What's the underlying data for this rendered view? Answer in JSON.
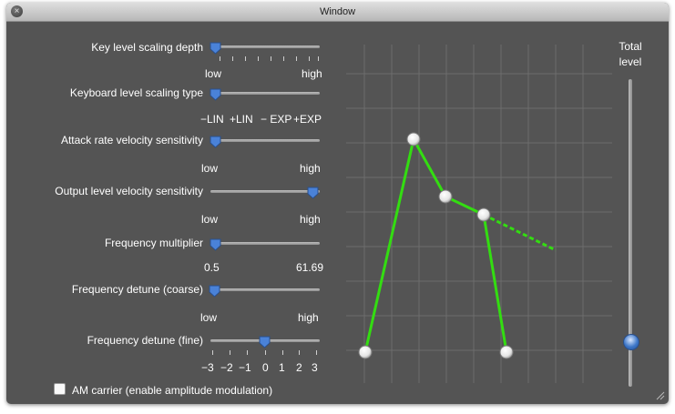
{
  "window": {
    "title": "Window",
    "close_label": "×"
  },
  "params": [
    {
      "label": "Key level scaling depth",
      "min": "low",
      "max": "high",
      "value": 0.0
    },
    {
      "label": "Keyboard level scaling type",
      "ticks": [
        "−LIN",
        "+LIN",
        "− EXP",
        "+EXP"
      ],
      "value": 0.0
    },
    {
      "label": "Attack rate velocity sensitivity",
      "min": "low",
      "max": "high",
      "value": 0.0
    },
    {
      "label": "Output level velocity sensitivity",
      "min": "low",
      "max": "high",
      "value": 0.95
    },
    {
      "label": "Frequency multiplier",
      "min": "0.5",
      "max": "61.69",
      "value": 0.0
    },
    {
      "label": "Frequency detune (coarse)",
      "min": "low",
      "max": "high",
      "value": 0.0
    },
    {
      "label": "Frequency detune (fine)",
      "ticks": [
        "−3",
        "−2",
        "−1",
        "0",
        "1",
        "2",
        "3"
      ],
      "value": 0.5
    }
  ],
  "total_level": {
    "label_line1": "Total",
    "label_line2": "level",
    "value": 0.12
  },
  "am_carrier": {
    "label": "AM carrier (enable amplitude modulation)",
    "checked": false
  },
  "colors": {
    "accent": "#3f78c9",
    "envelope": "#33dd11",
    "background": "#545454"
  }
}
